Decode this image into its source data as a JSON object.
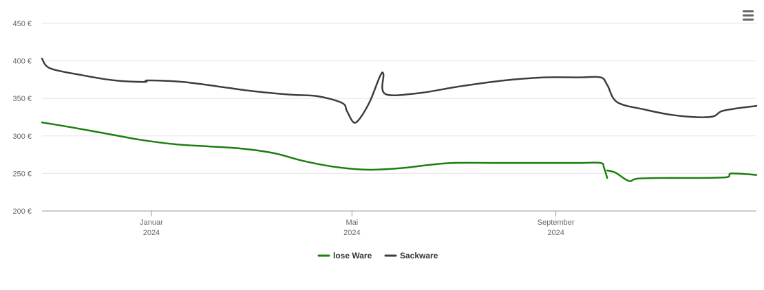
{
  "menu": {
    "icon": "hamburger-menu-icon"
  },
  "chart_data": {
    "type": "line",
    "title": "",
    "xlabel": "",
    "ylabel": "",
    "ylim": [
      200,
      450
    ],
    "yticks": [
      {
        "value": 200,
        "label": "200 €"
      },
      {
        "value": 250,
        "label": "250 €"
      },
      {
        "value": 300,
        "label": "300 €"
      },
      {
        "value": 350,
        "label": "350 €"
      },
      {
        "value": 400,
        "label": "400 €"
      },
      {
        "value": 450,
        "label": "450 €"
      }
    ],
    "xrange": [
      "2023-10-27",
      "2024-12-31"
    ],
    "xticks": [
      {
        "date": "2024-01-01",
        "month": "Januar",
        "year": "2024"
      },
      {
        "date": "2024-05-01",
        "month": "Mai",
        "year": "2024"
      },
      {
        "date": "2024-09-01",
        "month": "September",
        "year": "2024"
      }
    ],
    "grid": true,
    "legend_position": "bottom-center",
    "series": [
      {
        "name": "lose Ware",
        "color": "#1a7f0e",
        "segments": [
          [
            [
              "2023-10-27",
              318
            ],
            [
              "2023-11-15",
              311
            ],
            [
              "2023-12-05",
              303
            ],
            [
              "2023-12-25",
              295
            ],
            [
              "2024-01-15",
              289
            ],
            [
              "2024-02-05",
              286
            ],
            [
              "2024-02-25",
              283
            ],
            [
              "2024-03-15",
              277
            ],
            [
              "2024-04-01",
              267
            ],
            [
              "2024-04-20",
              259
            ],
            [
              "2024-05-10",
              255
            ],
            [
              "2024-05-30",
              257
            ],
            [
              "2024-06-15",
              261
            ],
            [
              "2024-07-01",
              264
            ],
            [
              "2024-07-30",
              264
            ],
            [
              "2024-08-30",
              264
            ],
            [
              "2024-09-15",
              264
            ],
            [
              "2024-09-28",
              264
            ],
            [
              "2024-09-30",
              258
            ],
            [
              "2024-10-02",
              244
            ]
          ],
          [
            [
              "2024-10-02",
              254
            ],
            [
              "2024-10-07",
              251
            ],
            [
              "2024-10-15",
              240
            ],
            [
              "2024-10-20",
              243
            ],
            [
              "2024-11-05",
              244
            ],
            [
              "2024-11-25",
              244
            ],
            [
              "2024-12-13",
              245
            ],
            [
              "2024-12-16",
              250
            ],
            [
              "2024-12-31",
              248
            ]
          ]
        ]
      },
      {
        "name": "Sackware",
        "color": "#3d3d3d",
        "segments": [
          [
            [
              "2023-10-27",
              403
            ],
            [
              "2023-11-01",
              390
            ],
            [
              "2023-11-20",
              381
            ],
            [
              "2023-12-10",
              374
            ],
            [
              "2023-12-28",
              372
            ],
            [
              "2023-12-30",
              374
            ],
            [
              "2024-01-20",
              372
            ],
            [
              "2024-02-10",
              366
            ],
            [
              "2024-03-01",
              360
            ],
            [
              "2024-03-25",
              355
            ],
            [
              "2024-04-10",
              353
            ],
            [
              "2024-04-25",
              344
            ],
            [
              "2024-04-28",
              333
            ],
            [
              "2024-05-02",
              318
            ],
            [
              "2024-05-06",
              324
            ],
            [
              "2024-05-12",
              347
            ],
            [
              "2024-05-18",
              380
            ],
            [
              "2024-05-20",
              382
            ],
            [
              "2024-05-21",
              356
            ],
            [
              "2024-06-10",
              357
            ],
            [
              "2024-07-05",
              366
            ],
            [
              "2024-08-01",
              374
            ],
            [
              "2024-08-25",
              378
            ],
            [
              "2024-09-15",
              378
            ],
            [
              "2024-09-28",
              378
            ],
            [
              "2024-10-02",
              368
            ],
            [
              "2024-10-08",
              345
            ],
            [
              "2024-10-25",
              335
            ],
            [
              "2024-11-10",
              328
            ],
            [
              "2024-11-25",
              325
            ],
            [
              "2024-12-05",
              326
            ],
            [
              "2024-12-10",
              333
            ],
            [
              "2024-12-20",
              337
            ],
            [
              "2024-12-31",
              340
            ]
          ]
        ]
      }
    ]
  }
}
